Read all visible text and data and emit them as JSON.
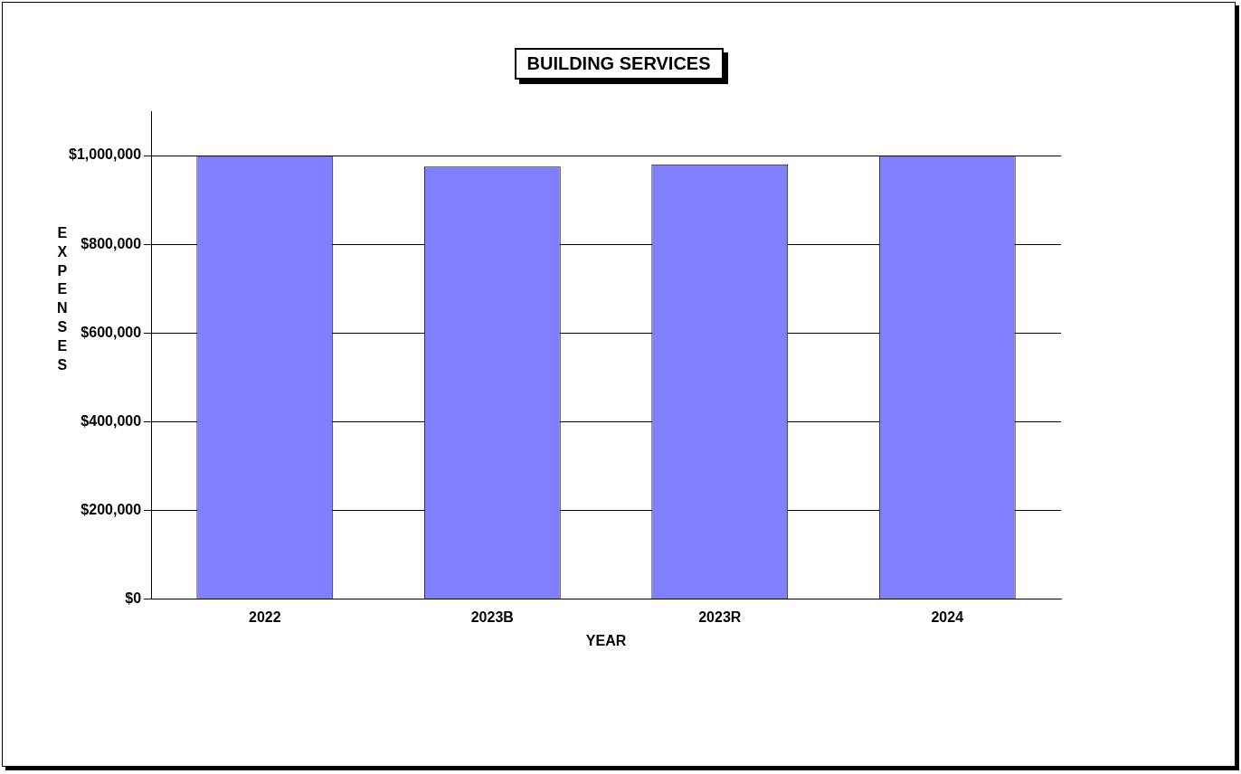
{
  "chart_data": {
    "type": "bar",
    "title": "BUILDING SERVICES",
    "xlabel": "YEAR",
    "ylabel": "EXPENSES",
    "categories": [
      "2022",
      "2023B",
      "2023R",
      "2024"
    ],
    "values": [
      1000000,
      975000,
      980000,
      1000000
    ],
    "color": "#8080ff",
    "ylim": [
      0,
      1100000
    ],
    "yticks": [
      {
        "value": 0,
        "label": "$0"
      },
      {
        "value": 200000,
        "label": "$200,000"
      },
      {
        "value": 400000,
        "label": "$400,000"
      },
      {
        "value": 600000,
        "label": "$600,000"
      },
      {
        "value": 800000,
        "label": "$800,000"
      },
      {
        "value": 1000000,
        "label": "$1,000,000"
      }
    ],
    "grid": "y",
    "legend": false
  }
}
